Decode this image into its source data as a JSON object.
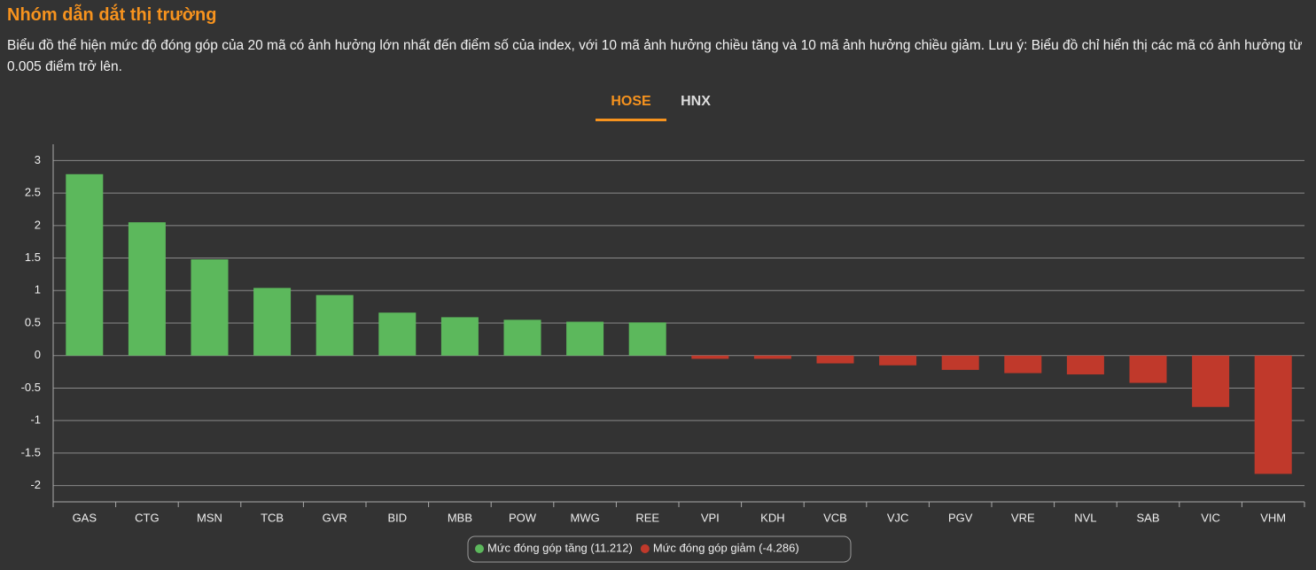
{
  "header": {
    "title": "Nhóm dẫn dắt thị trường",
    "subtitle": "Biểu đồ thể hiện mức độ đóng góp của 20 mã có ảnh hưởng lớn nhất đến điểm số của index, với 10 mã ảnh hưởng chiều tăng và 10 mã ảnh hưởng chiều giảm. Lưu ý: Biểu đồ chỉ hiển thị các mã có ảnh hưởng từ 0.005 điểm trở lên.",
    "tabs": [
      "HOSE",
      "HNX"
    ]
  },
  "chart_data": {
    "type": "bar",
    "categories": [
      "GAS",
      "CTG",
      "MSN",
      "TCB",
      "GVR",
      "BID",
      "MBB",
      "POW",
      "MWG",
      "REE",
      "VPI",
      "KDH",
      "VCB",
      "VJC",
      "PGV",
      "VRE",
      "NVL",
      "SAB",
      "VIC",
      "VHM"
    ],
    "series": [
      {
        "name": "Mức đóng góp tăng (11.212)",
        "color": "#5cb85c",
        "values": [
          2.79,
          2.05,
          1.48,
          1.04,
          0.93,
          0.66,
          0.59,
          0.55,
          0.52,
          0.51,
          null,
          null,
          null,
          null,
          null,
          null,
          null,
          null,
          null,
          null
        ]
      },
      {
        "name": "Mức đóng góp giảm (-4.286)",
        "color": "#c0392b",
        "values": [
          null,
          null,
          null,
          null,
          null,
          null,
          null,
          null,
          null,
          null,
          -0.05,
          -0.05,
          -0.12,
          -0.15,
          -0.22,
          -0.27,
          -0.29,
          -0.42,
          -0.79,
          -1.82
        ]
      }
    ],
    "ylim": [
      -2.25,
      3.25
    ],
    "yticks": [
      -2,
      -1.5,
      -1,
      -0.5,
      0,
      0.5,
      1,
      1.5,
      2,
      2.5,
      3
    ],
    "grid": true
  }
}
